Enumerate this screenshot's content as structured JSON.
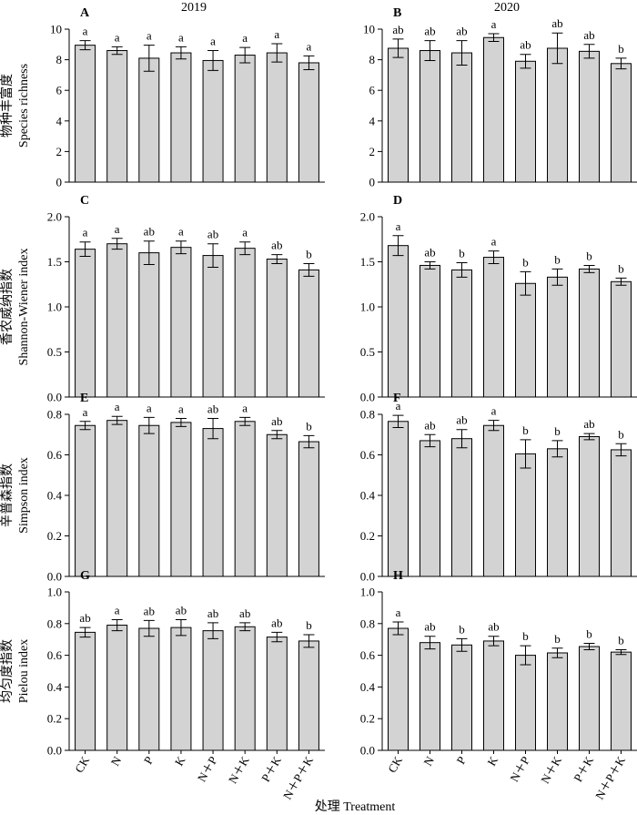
{
  "figure": {
    "x_axis_label": "处理 Treatment",
    "year_labels": [
      "2019",
      "2020"
    ]
  },
  "chart_data": [
    {
      "panel": "A",
      "type": "bar",
      "year": "2019",
      "categories": [
        "CK",
        "N",
        "P",
        "K",
        "N＋P",
        "N＋K",
        "P＋K",
        "N＋P＋K"
      ],
      "values": [
        8.95,
        8.6,
        8.1,
        8.45,
        7.95,
        8.3,
        8.45,
        7.8
      ],
      "errors": [
        0.3,
        0.25,
        0.85,
        0.4,
        0.65,
        0.5,
        0.6,
        0.45
      ],
      "significance": [
        "a",
        "a",
        "a",
        "a",
        "a",
        "a",
        "a",
        "a"
      ],
      "ylabel": "物种丰富度 Species richness",
      "ylim": [
        0,
        10
      ],
      "yticks": [
        0,
        2,
        4,
        6,
        8,
        10
      ]
    },
    {
      "panel": "B",
      "type": "bar",
      "year": "2020",
      "categories": [
        "CK",
        "N",
        "P",
        "K",
        "N＋P",
        "N＋K",
        "P＋K",
        "N＋P＋K"
      ],
      "values": [
        8.75,
        8.6,
        8.45,
        9.45,
        7.9,
        8.75,
        8.55,
        7.75
      ],
      "errors": [
        0.6,
        0.65,
        0.8,
        0.25,
        0.45,
        1.0,
        0.45,
        0.35
      ],
      "significance": [
        "ab",
        "ab",
        "ab",
        "a",
        "ab",
        "ab",
        "ab",
        "b"
      ],
      "ylabel": "",
      "ylim": [
        0,
        10
      ],
      "yticks": [
        0,
        2,
        4,
        6,
        8,
        10
      ]
    },
    {
      "panel": "C",
      "type": "bar",
      "year": "2019",
      "categories": [
        "CK",
        "N",
        "P",
        "K",
        "N＋P",
        "N＋K",
        "P＋K",
        "N＋P＋K"
      ],
      "values": [
        1.64,
        1.7,
        1.6,
        1.66,
        1.57,
        1.65,
        1.53,
        1.41
      ],
      "errors": [
        0.08,
        0.06,
        0.13,
        0.07,
        0.13,
        0.07,
        0.05,
        0.07
      ],
      "significance": [
        "a",
        "a",
        "ab",
        "a",
        "ab",
        "a",
        "ab",
        "b"
      ],
      "ylabel": "香农威纳指数 Shannon-Wiener index",
      "ylim": [
        0,
        2.0
      ],
      "yticks": [
        0,
        0.5,
        1.0,
        1.5,
        2.0
      ]
    },
    {
      "panel": "D",
      "type": "bar",
      "year": "2020",
      "categories": [
        "CK",
        "N",
        "P",
        "K",
        "N＋P",
        "N＋K",
        "P＋K",
        "N＋P＋K"
      ],
      "values": [
        1.68,
        1.46,
        1.41,
        1.55,
        1.26,
        1.33,
        1.42,
        1.28
      ],
      "errors": [
        0.11,
        0.04,
        0.08,
        0.07,
        0.13,
        0.09,
        0.04,
        0.04
      ],
      "significance": [
        "a",
        "ab",
        "b",
        "a",
        "b",
        "b",
        "b",
        "b"
      ],
      "ylabel": "",
      "ylim": [
        0,
        2.0
      ],
      "yticks": [
        0,
        0.5,
        1.0,
        1.5,
        2.0
      ]
    },
    {
      "panel": "E",
      "type": "bar",
      "year": "2019",
      "categories": [
        "CK",
        "N",
        "P",
        "K",
        "N＋P",
        "N＋K",
        "P＋K",
        "N＋P＋K"
      ],
      "values": [
        0.745,
        0.77,
        0.745,
        0.76,
        0.73,
        0.765,
        0.7,
        0.665
      ],
      "errors": [
        0.02,
        0.02,
        0.04,
        0.02,
        0.05,
        0.02,
        0.02,
        0.03
      ],
      "significance": [
        "a",
        "a",
        "a",
        "a",
        "ab",
        "a",
        "ab",
        "b"
      ],
      "ylabel": "辛普森指数 Simpson index",
      "ylim": [
        0,
        0.8
      ],
      "yticks": [
        0,
        0.2,
        0.4,
        0.6,
        0.8
      ]
    },
    {
      "panel": "F",
      "type": "bar",
      "year": "2020",
      "categories": [
        "CK",
        "N",
        "P",
        "K",
        "N＋P",
        "N＋K",
        "P＋K",
        "N＋P＋K"
      ],
      "values": [
        0.765,
        0.67,
        0.68,
        0.745,
        0.605,
        0.63,
        0.69,
        0.625
      ],
      "errors": [
        0.03,
        0.03,
        0.045,
        0.025,
        0.07,
        0.04,
        0.015,
        0.03
      ],
      "significance": [
        "a",
        "ab",
        "ab",
        "a",
        "b",
        "b",
        "ab",
        "b"
      ],
      "ylabel": "",
      "ylim": [
        0,
        0.8
      ],
      "yticks": [
        0,
        0.2,
        0.4,
        0.6,
        0.8
      ]
    },
    {
      "panel": "G",
      "type": "bar",
      "year": "2019",
      "categories": [
        "CK",
        "N",
        "P",
        "K",
        "N＋P",
        "N＋K",
        "P＋K",
        "N＋P＋K"
      ],
      "values": [
        0.745,
        0.79,
        0.77,
        0.775,
        0.755,
        0.78,
        0.715,
        0.69
      ],
      "errors": [
        0.03,
        0.035,
        0.05,
        0.05,
        0.05,
        0.025,
        0.03,
        0.04
      ],
      "significance": [
        "ab",
        "a",
        "ab",
        "ab",
        "ab",
        "ab",
        "ab",
        "b"
      ],
      "ylabel": "均匀度指数 Pielou index",
      "ylim": [
        0,
        1.0
      ],
      "yticks": [
        0,
        0.2,
        0.4,
        0.6,
        0.8,
        1.0
      ]
    },
    {
      "panel": "H",
      "type": "bar",
      "year": "2020",
      "categories": [
        "CK",
        "N",
        "P",
        "K",
        "N＋P",
        "N＋K",
        "P＋K",
        "N＋P＋K"
      ],
      "values": [
        0.77,
        0.68,
        0.665,
        0.69,
        0.6,
        0.615,
        0.655,
        0.62
      ],
      "errors": [
        0.04,
        0.04,
        0.04,
        0.03,
        0.06,
        0.03,
        0.02,
        0.015
      ],
      "significance": [
        "a",
        "ab",
        "b",
        "ab",
        "b",
        "b",
        "b",
        "b"
      ],
      "ylabel": "",
      "ylim": [
        0,
        1.0
      ],
      "yticks": [
        0,
        0.2,
        0.4,
        0.6,
        0.8,
        1.0
      ]
    }
  ]
}
